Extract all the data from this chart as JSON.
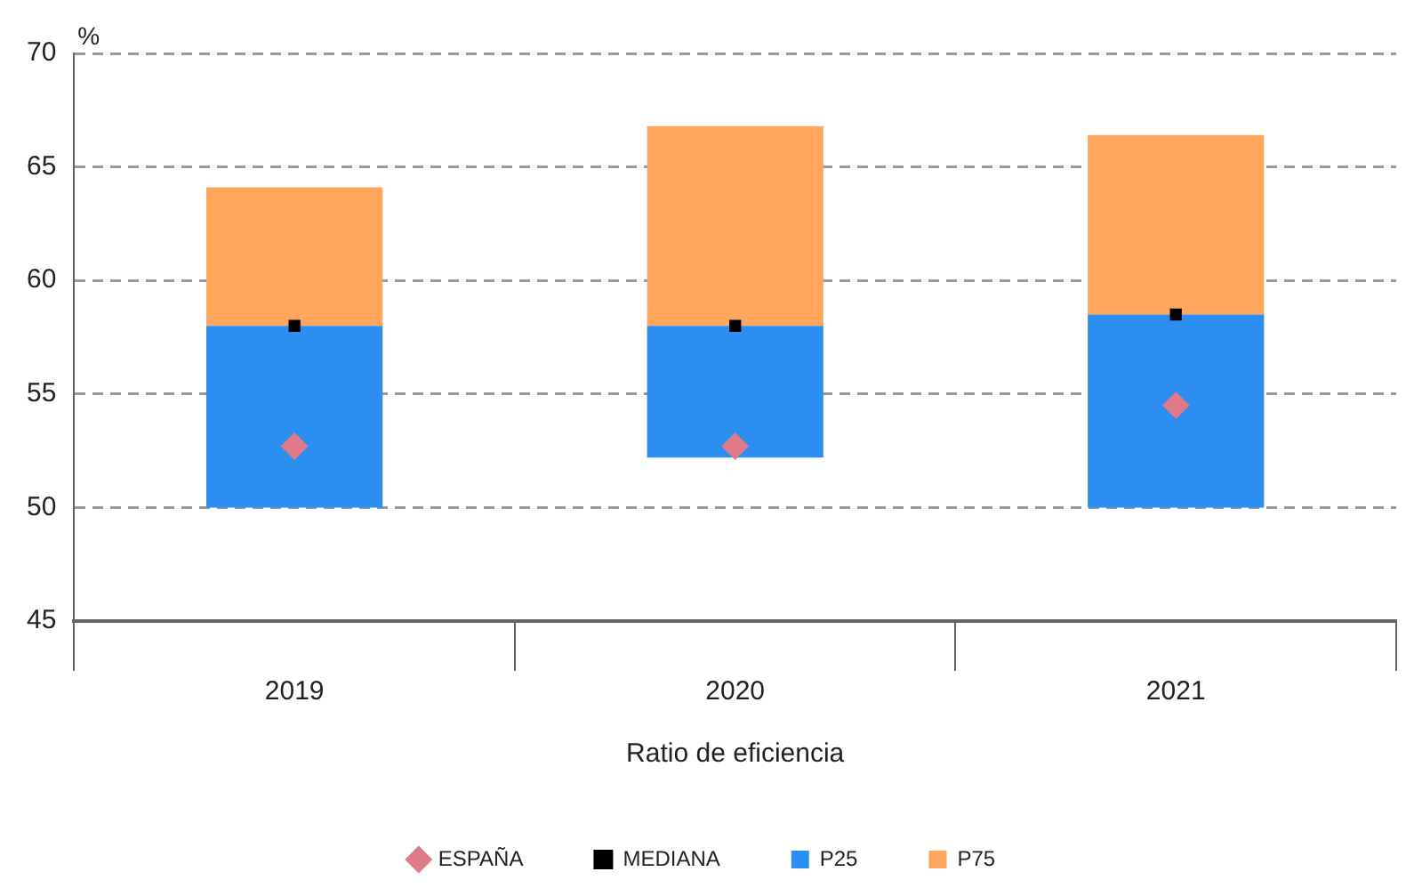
{
  "chart_data": {
    "type": "bar",
    "xlabel": "Ratio de eficiencia",
    "ylabel": "%",
    "categories": [
      "2019",
      "2020",
      "2021"
    ],
    "series": [
      {
        "name": "P25",
        "color": "#2b8ef0",
        "base": [
          50,
          52.2,
          50
        ],
        "values": [
          8,
          5.8,
          8.5
        ]
      },
      {
        "name": "P75",
        "color": "#ffa65c",
        "base": [
          58,
          58,
          58.5
        ],
        "values": [
          6.1,
          8.8,
          7.9
        ]
      },
      {
        "name": "ESPAÑA",
        "type": "scatter",
        "marker": "diamond",
        "color": "#e07a88",
        "values": [
          52.7,
          52.7,
          54.5
        ]
      },
      {
        "name": "MEDIANA",
        "type": "scatter",
        "marker": "square",
        "color": "#000000",
        "values": [
          58,
          58,
          58.5
        ]
      }
    ],
    "ylim": [
      45,
      70
    ],
    "yticks": [
      45,
      50,
      55,
      60,
      65,
      70
    ],
    "grid": "y",
    "legend": "bottom"
  }
}
